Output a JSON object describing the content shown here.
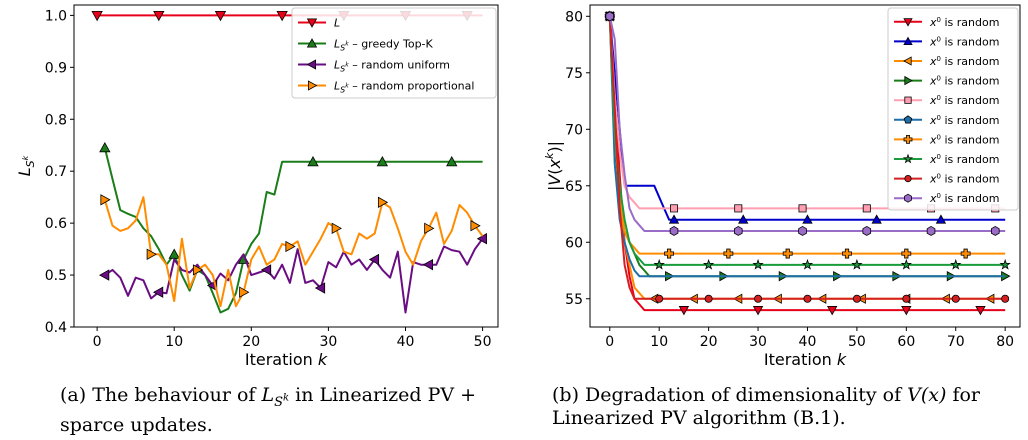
{
  "captions": {
    "a": "(a) The behaviour of L_{S^k} in Linearized PV + sparce updates.",
    "a_line1_pre": "(a) The behaviour of ",
    "a_sym": "L",
    "a_sub": "S",
    "a_sup": "k",
    "a_line1_post": " in Linearized PV +",
    "a_line2": "sparce updates.",
    "b_line1_pre": "(b) Degradation of dimensionality of ",
    "b_sym": "V(x)",
    "b_line1_post": " for",
    "b_line2": "Linearized PV algorithm (B.1)."
  },
  "chart_data": [
    {
      "type": "line",
      "xlabel": "Iteration k",
      "ylabel": "L_{S^k}",
      "xlim": [
        -3,
        52
      ],
      "ylim": [
        0.4,
        1.02
      ],
      "xticks": [
        0,
        10,
        20,
        30,
        40,
        50
      ],
      "yticks": [
        0.4,
        0.5,
        0.6,
        0.7,
        0.8,
        0.9,
        1.0
      ],
      "legend_position": "top-right",
      "series": [
        {
          "name": "L",
          "color": "#e8001b",
          "marker": "triangle-down",
          "x": [
            0,
            50
          ],
          "y": [
            1.0,
            1.0
          ],
          "markers_x": [
            0,
            8,
            16,
            24,
            32,
            40,
            48
          ],
          "markers_y": [
            1.0,
            1.0,
            1.0,
            1.0,
            1.0,
            1.0,
            1.0
          ]
        },
        {
          "name": "L_{S^k} – greedy Top-K",
          "color": "#1a7d1a",
          "marker": "triangle-up",
          "x": [
            1,
            2,
            3,
            4,
            5,
            6,
            7,
            8,
            9,
            10,
            11,
            12,
            13,
            14,
            15,
            16,
            17,
            18,
            19,
            20,
            21,
            22,
            23,
            24,
            28,
            32,
            37,
            42,
            46,
            50
          ],
          "y": [
            0.745,
            0.685,
            0.625,
            0.618,
            0.612,
            0.59,
            0.575,
            0.55,
            0.52,
            0.54,
            0.5,
            0.47,
            0.51,
            0.5,
            0.465,
            0.428,
            0.435,
            0.465,
            0.53,
            0.56,
            0.58,
            0.66,
            0.655,
            0.718,
            0.718,
            0.718,
            0.718,
            0.718,
            0.718,
            0.718
          ],
          "markers_x": [
            1,
            10,
            19,
            28,
            37,
            46
          ],
          "markers_y": [
            0.745,
            0.54,
            0.53,
            0.718,
            0.718,
            0.718
          ]
        },
        {
          "name": "L_{S^k} – random uniform",
          "color": "#6a0d83",
          "marker": "triangle-left",
          "x": [
            1,
            2,
            3,
            4,
            5,
            6,
            7,
            8,
            9,
            10,
            11,
            12,
            13,
            14,
            15,
            16,
            17,
            18,
            19,
            20,
            21,
            22,
            23,
            24,
            25,
            26,
            27,
            28,
            29,
            30,
            31,
            32,
            33,
            34,
            35,
            36,
            37,
            38,
            39,
            40,
            41,
            42,
            43,
            44,
            45,
            46,
            47,
            48,
            49,
            50
          ],
          "y": [
            0.5,
            0.51,
            0.495,
            0.46,
            0.495,
            0.49,
            0.455,
            0.467,
            0.465,
            0.53,
            0.51,
            0.505,
            0.52,
            0.5,
            0.48,
            0.503,
            0.49,
            0.52,
            0.54,
            0.5,
            0.505,
            0.51,
            0.493,
            0.52,
            0.485,
            0.55,
            0.485,
            0.49,
            0.475,
            0.525,
            0.515,
            0.545,
            0.52,
            0.53,
            0.51,
            0.53,
            0.51,
            0.495,
            0.545,
            0.428,
            0.525,
            0.52,
            0.52,
            0.52,
            0.555,
            0.548,
            0.545,
            0.52,
            0.55,
            0.57
          ],
          "markers_x": [
            1,
            8,
            15,
            22,
            29,
            36,
            43,
            50
          ],
          "markers_y": [
            0.5,
            0.467,
            0.48,
            0.51,
            0.475,
            0.53,
            0.52,
            0.57
          ]
        },
        {
          "name": "L_{S^k} – random proportional",
          "color": "#ff8c00",
          "marker": "triangle-right",
          "x": [
            1,
            2,
            3,
            4,
            5,
            6,
            7,
            8,
            9,
            10,
            11,
            12,
            13,
            14,
            15,
            16,
            17,
            18,
            19,
            20,
            21,
            22,
            23,
            24,
            25,
            26,
            27,
            28,
            29,
            30,
            31,
            32,
            33,
            34,
            35,
            36,
            37,
            38,
            39,
            40,
            41,
            42,
            43,
            44,
            45,
            46,
            47,
            48,
            49,
            50
          ],
          "y": [
            0.645,
            0.595,
            0.585,
            0.59,
            0.605,
            0.65,
            0.54,
            0.54,
            0.52,
            0.45,
            0.57,
            0.475,
            0.51,
            0.52,
            0.5,
            0.44,
            0.51,
            0.44,
            0.467,
            0.53,
            0.555,
            0.52,
            0.53,
            0.56,
            0.555,
            0.565,
            0.52,
            0.545,
            0.57,
            0.6,
            0.59,
            0.545,
            0.54,
            0.58,
            0.57,
            0.58,
            0.64,
            0.63,
            0.59,
            0.545,
            0.52,
            0.565,
            0.59,
            0.62,
            0.56,
            0.585,
            0.635,
            0.62,
            0.595,
            0.575
          ],
          "markers_x": [
            1,
            7,
            13,
            19,
            25,
            31,
            37,
            43,
            49
          ],
          "markers_y": [
            0.645,
            0.54,
            0.51,
            0.467,
            0.555,
            0.59,
            0.64,
            0.59,
            0.595
          ]
        }
      ]
    },
    {
      "type": "line",
      "xlabel": "Iteration k",
      "ylabel": "|V(x^k)|",
      "xlim": [
        -4,
        83
      ],
      "ylim": [
        52.5,
        81
      ],
      "xticks": [
        0,
        10,
        20,
        30,
        40,
        50,
        60,
        70,
        80
      ],
      "yticks": [
        55,
        60,
        65,
        70,
        75,
        80
      ],
      "legend_position": "top-right",
      "series": [
        {
          "name": "x^0 is random",
          "color": "#e8001b",
          "marker": "triangle-down",
          "x": [
            0,
            1,
            2,
            3,
            4,
            5,
            6,
            7,
            80
          ],
          "y": [
            80,
            73,
            66,
            60,
            57,
            55,
            54.5,
            54,
            54
          ],
          "markers_x": [
            0,
            15,
            30,
            45,
            60,
            75
          ],
          "markers_y": [
            80,
            54,
            54,
            54,
            54,
            54
          ]
        },
        {
          "name": "x^0 is random",
          "color": "#0000cc",
          "marker": "triangle-up",
          "x": [
            0,
            1,
            2,
            3,
            4,
            9,
            10,
            11,
            12,
            13,
            80
          ],
          "y": [
            80,
            75,
            70,
            65,
            65,
            65,
            64,
            63,
            62,
            62,
            62
          ],
          "markers_x": [
            0,
            13,
            27,
            40,
            54,
            67
          ],
          "markers_y": [
            80,
            62,
            62,
            62,
            62,
            62
          ]
        },
        {
          "name": "x^0 is random",
          "color": "#ff8c00",
          "marker": "triangle-left",
          "x": [
            0,
            1,
            2,
            3,
            4,
            5,
            6,
            7,
            8,
            80
          ],
          "y": [
            80,
            70,
            63,
            60,
            58,
            56,
            55.5,
            55,
            55,
            55
          ],
          "markers_x": [
            0,
            9,
            17,
            26,
            34,
            43,
            51,
            60,
            68,
            77
          ],
          "markers_y": [
            80,
            55,
            55,
            55,
            55,
            55,
            55,
            55,
            55,
            55
          ]
        },
        {
          "name": "x^0 is random",
          "color": "#1a7d1a",
          "marker": "triangle-right",
          "x": [
            0,
            1,
            2,
            3,
            4,
            5,
            6,
            7,
            8,
            9,
            80
          ],
          "y": [
            80,
            69,
            64,
            61,
            60,
            59,
            58,
            57.5,
            57,
            57,
            57
          ],
          "markers_x": [
            0,
            12,
            23,
            35,
            46,
            58,
            69,
            80
          ],
          "markers_y": [
            80,
            57,
            57,
            57,
            57,
            57,
            57,
            57
          ]
        },
        {
          "name": "x^0 is random",
          "color": "#ff9eb0",
          "marker": "square",
          "x": [
            0,
            1,
            2,
            3,
            4,
            5,
            6,
            80
          ],
          "y": [
            80,
            73,
            68,
            65,
            64,
            63.5,
            63,
            63
          ],
          "markers_x": [
            0,
            13,
            26,
            39,
            52,
            65,
            78
          ],
          "markers_y": [
            80,
            63,
            63,
            63,
            63,
            63,
            63
          ]
        },
        {
          "name": "x^0 is random",
          "color": "#1f6fa8",
          "marker": "pentagon",
          "x": [
            0,
            1,
            2,
            3,
            4,
            5,
            6,
            7,
            80
          ],
          "y": [
            80,
            67,
            62,
            60,
            58.5,
            57.5,
            57,
            57,
            57
          ],
          "markers_x": [
            0
          ],
          "markers_y": [
            80
          ]
        },
        {
          "name": "x^0 is random",
          "color": "#ff8c00",
          "marker": "plus",
          "x": [
            0,
            1,
            2,
            3,
            4,
            5,
            6,
            80
          ],
          "y": [
            80,
            70,
            64,
            61,
            60,
            59.5,
            59,
            59
          ],
          "markers_x": [
            0,
            12,
            24,
            36,
            48,
            60,
            72
          ],
          "markers_y": [
            80,
            59,
            59,
            59,
            59,
            59,
            59
          ]
        },
        {
          "name": "x^0 is random",
          "color": "#1a9c3c",
          "marker": "star",
          "x": [
            0,
            1,
            2,
            3,
            4,
            5,
            6,
            7,
            8,
            80
          ],
          "y": [
            80,
            70,
            65,
            62,
            60,
            59,
            58.5,
            58,
            58,
            58
          ],
          "markers_x": [
            0,
            10,
            20,
            30,
            40,
            50,
            60,
            70,
            80
          ],
          "markers_y": [
            80,
            58,
            58,
            58,
            58,
            58,
            58,
            58,
            58
          ]
        },
        {
          "name": "x^0 is random",
          "color": "#d42020",
          "marker": "circle",
          "x": [
            0,
            1,
            2,
            3,
            4,
            5,
            6,
            80
          ],
          "y": [
            80,
            72,
            63,
            58,
            56,
            55,
            55,
            55
          ],
          "markers_x": [
            0,
            10,
            20,
            30,
            40,
            50,
            60,
            70,
            80
          ],
          "markers_y": [
            80,
            55,
            55,
            55,
            55,
            55,
            55,
            55,
            55
          ]
        },
        {
          "name": "x^0 is random",
          "color": "#9a6cc8",
          "marker": "hexagon",
          "x": [
            0,
            1,
            2,
            3,
            4,
            5,
            6,
            7,
            8,
            9,
            80
          ],
          "y": [
            80,
            78,
            70,
            66,
            63,
            62,
            61.5,
            61,
            61,
            61,
            61
          ],
          "markers_x": [
            0,
            13,
            26,
            39,
            52,
            65,
            78
          ],
          "markers_y": [
            80,
            61,
            61,
            61,
            61,
            61,
            61
          ]
        }
      ]
    }
  ]
}
